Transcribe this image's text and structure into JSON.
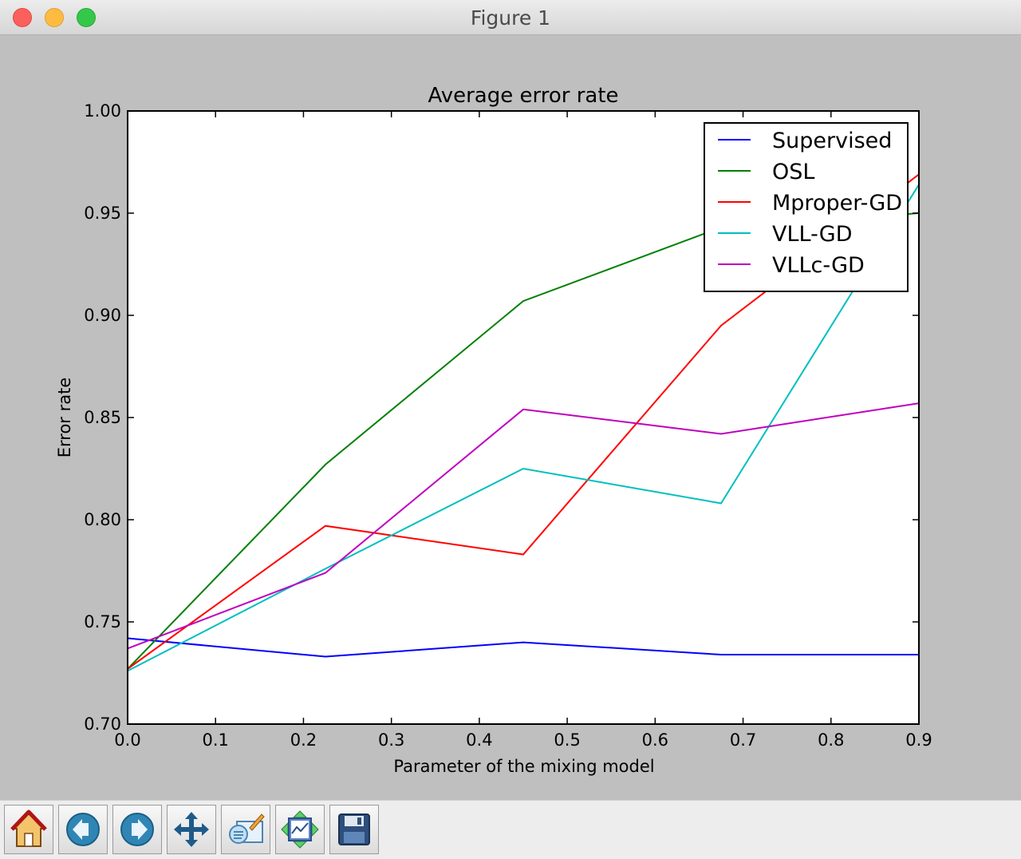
{
  "window": {
    "title": "Figure 1"
  },
  "toolbar": {
    "buttons": [
      {
        "name": "home",
        "icon": "home-icon"
      },
      {
        "name": "back",
        "icon": "back-arrow-icon"
      },
      {
        "name": "forward",
        "icon": "forward-arrow-icon"
      },
      {
        "name": "pan",
        "icon": "pan-move-icon"
      },
      {
        "name": "zoom",
        "icon": "zoom-rect-icon"
      },
      {
        "name": "subplots",
        "icon": "configure-subplots-icon"
      },
      {
        "name": "save",
        "icon": "save-disk-icon"
      }
    ]
  },
  "chart_data": {
    "type": "line",
    "title": "Average error rate",
    "xlabel": "Parameter of the mixing model",
    "ylabel": "Error rate",
    "xlim": [
      0.0,
      0.9
    ],
    "ylim": [
      0.7,
      1.0
    ],
    "xticks": [
      "0.0",
      "0.1",
      "0.2",
      "0.3",
      "0.4",
      "0.5",
      "0.6",
      "0.7",
      "0.8",
      "0.9"
    ],
    "yticks": [
      "0.70",
      "0.75",
      "0.80",
      "0.85",
      "0.90",
      "0.95",
      "1.00"
    ],
    "grid": false,
    "legend_position": "top-right",
    "x": [
      0.0,
      0.225,
      0.45,
      0.675,
      0.9
    ],
    "series": [
      {
        "name": "Supervised",
        "color": "#0000ff",
        "values": [
          0.742,
          0.733,
          0.74,
          0.734,
          0.734
        ]
      },
      {
        "name": "OSL",
        "color": "#008000",
        "values": [
          0.727,
          0.827,
          0.907,
          0.943,
          0.95
        ]
      },
      {
        "name": "Mproper-GD",
        "color": "#ff0000",
        "values": [
          0.727,
          0.797,
          0.783,
          0.895,
          0.969
        ]
      },
      {
        "name": "VLL-GD",
        "color": "#00bfbf",
        "values": [
          0.726,
          0.776,
          0.825,
          0.808,
          0.964
        ]
      },
      {
        "name": "VLLc-GD",
        "color": "#bf00bf",
        "values": [
          0.737,
          0.774,
          0.854,
          0.842,
          0.857
        ]
      }
    ]
  }
}
